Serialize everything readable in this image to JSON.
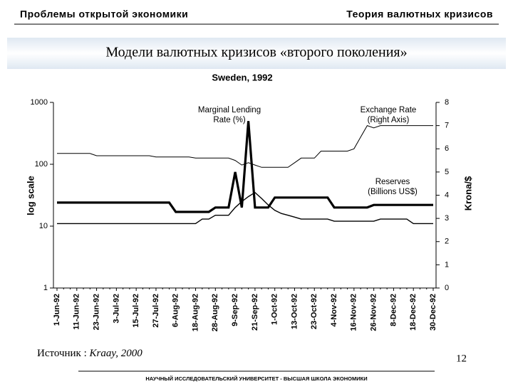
{
  "header": {
    "left": "Проблемы открытой экономики",
    "right": "Теория валютных кризисов"
  },
  "slide_title": "Модели валютных кризисов «второго поколения»",
  "source": {
    "label": "Источник : ",
    "author": "Kraay, 2000"
  },
  "page_number": "12",
  "footer": "НАУЧНЫЙ ИССЛЕДОВАТЕЛЬСКИЙ УНИВЕРСИТЕТ - ВЫСШАЯ ШКОЛА ЭКОНОМИКИ",
  "chart_data": {
    "type": "line",
    "title": "Sweden, 1992",
    "ylabel": "log scale",
    "y2label": "Krona/$",
    "log_scale": true,
    "annotations": [
      [
        "Marginal Lending",
        "Rate (%)"
      ],
      [
        "Exchange Rate",
        "(Right Axis)"
      ],
      [
        "Reserves",
        "(Billions US$)"
      ]
    ],
    "categories": [
      "1-Jun-92",
      null,
      null,
      "11-Jun-92",
      null,
      null,
      "23-Jun-92",
      null,
      null,
      "3-Jul-92",
      null,
      null,
      "15-Jul-92",
      null,
      null,
      "27-Jul-92",
      null,
      null,
      "6-Aug-92",
      null,
      null,
      "18-Aug-92",
      null,
      null,
      "28-Aug-92",
      null,
      null,
      "9-Sep-92",
      null,
      null,
      "21-Sep-92",
      null,
      null,
      "1-Oct-92",
      null,
      null,
      "13-Oct-92",
      null,
      null,
      "23-Oct-92",
      null,
      null,
      "4-Nov-92",
      null,
      null,
      "16-Nov-92",
      null,
      null,
      "26-Nov-92",
      null,
      null,
      "8-Dec-92",
      null,
      null,
      "18-Dec-92",
      null,
      null,
      "30-Dec-92"
    ],
    "series": [
      {
        "color": "#000000",
        "values": [
          24,
          24,
          24,
          24,
          24,
          24,
          24,
          24,
          24,
          24,
          24,
          24,
          24,
          24,
          24,
          24,
          24,
          24,
          17,
          17,
          17,
          17,
          17,
          17,
          20,
          20,
          20,
          75,
          20,
          500,
          20,
          20,
          20,
          29,
          29,
          29,
          29,
          29,
          29,
          29,
          29,
          29,
          20,
          20,
          20,
          20,
          20,
          20,
          22,
          22,
          22,
          22,
          22,
          22,
          22,
          22,
          22,
          22
        ]
      },
      {
        "color": "#000000",
        "values": [
          11,
          11,
          11,
          11,
          11,
          11,
          11,
          11,
          11,
          11,
          11,
          11,
          11,
          11,
          11,
          11,
          11,
          11,
          11,
          11,
          11,
          11,
          13,
          13,
          15,
          15,
          15,
          20,
          25,
          30,
          35,
          28,
          22,
          18,
          16,
          15,
          14,
          13,
          13,
          13,
          13,
          13,
          12,
          12,
          12,
          12,
          12,
          12,
          12,
          13,
          13,
          13,
          13,
          13,
          11,
          11,
          11,
          11
        ]
      },
      {
        "color": "#000000",
        "axis": "y2",
        "values": [
          5.8,
          5.8,
          5.8,
          5.8,
          5.8,
          5.8,
          5.7,
          5.7,
          5.7,
          5.7,
          5.7,
          5.7,
          5.7,
          5.7,
          5.7,
          5.65,
          5.65,
          5.65,
          5.65,
          5.65,
          5.65,
          5.6,
          5.6,
          5.6,
          5.6,
          5.6,
          5.6,
          5.5,
          5.3,
          5.4,
          5.3,
          5.2,
          5.2,
          5.2,
          5.2,
          5.2,
          5.4,
          5.6,
          5.6,
          5.6,
          5.9,
          5.9,
          5.9,
          5.9,
          5.9,
          6.0,
          6.5,
          7.0,
          6.9,
          7.0,
          7.0,
          7.0,
          7.0,
          7.0,
          7.0,
          7.0,
          7.0,
          7.0
        ]
      }
    ],
    "ylim": [
      1,
      1000
    ],
    "yticks": [
      1,
      10,
      100,
      1000
    ],
    "y2lim": [
      0,
      8
    ],
    "y2ticks": [
      0,
      1,
      2,
      3,
      4,
      5,
      6,
      7,
      8
    ]
  }
}
